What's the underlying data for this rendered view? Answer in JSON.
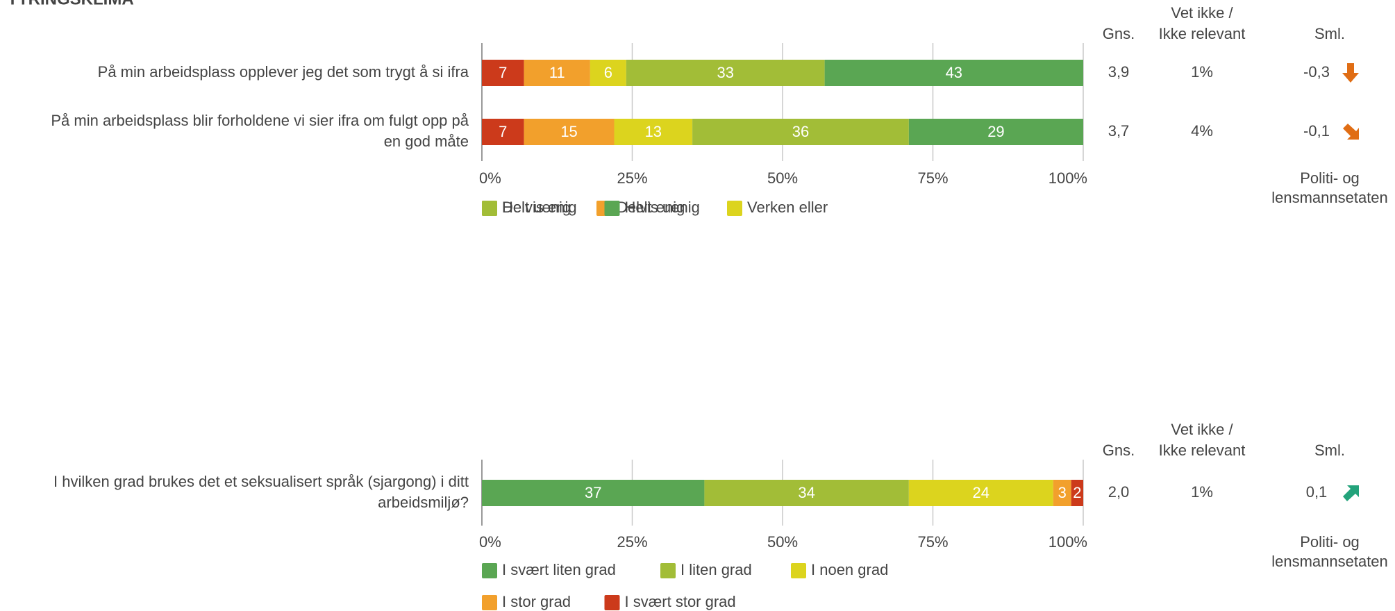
{
  "section_title": "YTRINGSKLIMA",
  "colors": {
    "helt_uenig": "#cc3a1b",
    "delvis_uenig": "#f2a02c",
    "verken_eller": "#dcd41e",
    "delvis_enig": "#a2bd37",
    "helt_enig": "#5aa653",
    "arrow_down": "#e06d14",
    "arrow_up": "#23a37b",
    "text": "#444444",
    "grid": "#c8c8c8",
    "axis": "#999999"
  },
  "chart_data": [
    {
      "type": "bar",
      "stacked": true,
      "orientation": "horizontal",
      "xlim": [
        0,
        100
      ],
      "x_ticks": [
        "0%",
        "25%",
        "50%",
        "75%",
        "100%"
      ],
      "legend_placement": "bottom",
      "grid": true,
      "columns": {
        "avg_header": "Gns.",
        "dontknow_header": [
          "Vet ikke /",
          "Ikke relevant"
        ],
        "cmp_header": "Sml.",
        "cmp_footer": [
          "Politi- og",
          "lensmannsetaten"
        ]
      },
      "series": [
        {
          "name": "Helt uenig",
          "color_key": "helt_uenig"
        },
        {
          "name": "Delvis uenig",
          "color_key": "delvis_uenig"
        },
        {
          "name": "Verken eller",
          "color_key": "verken_eller"
        },
        {
          "name": "Delvis enig",
          "color_key": "delvis_enig"
        },
        {
          "name": "Helt enig",
          "color_key": "helt_enig"
        }
      ],
      "categories": [
        {
          "label": [
            "På min arbeidsplass opplever jeg det som trygt å si ifra"
          ],
          "values": [
            7,
            11,
            6,
            33,
            43
          ],
          "avg": "3,9",
          "dontknow": "1%",
          "cmp": "-0,3",
          "cmp_direction": "down"
        },
        {
          "label": [
            "På min arbeidsplass blir forholdene vi sier ifra om fulgt opp på",
            "en god måte"
          ],
          "values": [
            7,
            15,
            13,
            36,
            29
          ],
          "avg": "3,7",
          "dontknow": "4%",
          "cmp": "-0,1",
          "cmp_direction": "down-slight"
        }
      ]
    },
    {
      "type": "bar",
      "stacked": true,
      "orientation": "horizontal",
      "xlim": [
        0,
        100
      ],
      "x_ticks": [
        "0%",
        "25%",
        "50%",
        "75%",
        "100%"
      ],
      "legend_placement": "bottom",
      "grid": true,
      "columns": {
        "avg_header": "Gns.",
        "dontknow_header": [
          "Vet ikke /",
          "Ikke relevant"
        ],
        "cmp_header": "Sml.",
        "cmp_footer": [
          "Politi- og",
          "lensmannsetaten"
        ]
      },
      "series": [
        {
          "name": "I svært liten grad",
          "color_key": "helt_enig"
        },
        {
          "name": "I liten grad",
          "color_key": "delvis_enig"
        },
        {
          "name": "I noen grad",
          "color_key": "verken_eller"
        },
        {
          "name": "I stor grad",
          "color_key": "delvis_uenig"
        },
        {
          "name": "I svært stor grad",
          "color_key": "helt_uenig"
        }
      ],
      "categories": [
        {
          "label": [
            "I hvilken grad brukes det et seksualisert språk (sjargong) i ditt",
            "arbeidsmiljø?"
          ],
          "values": [
            37,
            34,
            24,
            3,
            2
          ],
          "avg": "2,0",
          "dontknow": "1%",
          "cmp": "0,1",
          "cmp_direction": "up-slight"
        }
      ]
    }
  ]
}
